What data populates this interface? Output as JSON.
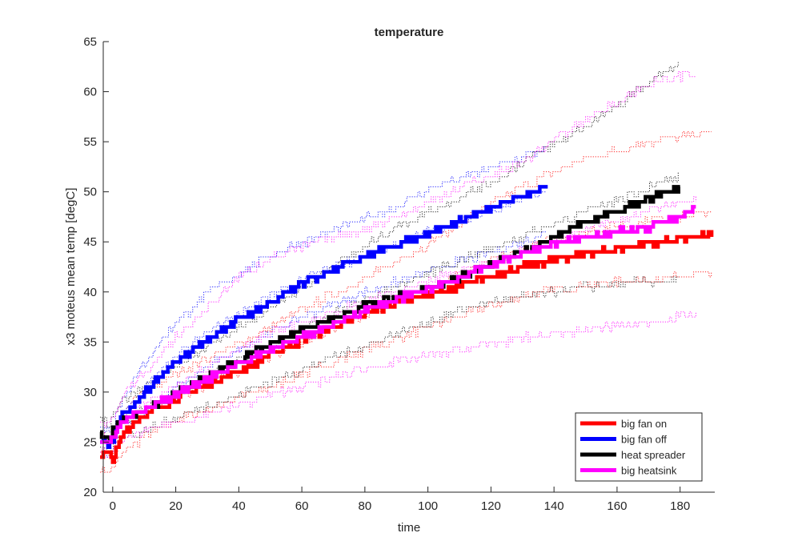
{
  "chart_data": {
    "type": "line",
    "title": "temperature",
    "xlabel": "time",
    "ylabel": "x3 moteus mean temp [degC]",
    "xlim": [
      -3,
      191
    ],
    "ylim": [
      20,
      65
    ],
    "xticks": [
      0,
      20,
      40,
      60,
      80,
      100,
      120,
      140,
      160,
      180
    ],
    "yticks": [
      20,
      25,
      30,
      35,
      40,
      45,
      50,
      55,
      60,
      65
    ],
    "grid": false,
    "legend_position": "bottom-right",
    "series": [
      {
        "name": "big fan on",
        "color": "#ff0000",
        "x": [
          -4,
          -1,
          0,
          1,
          3,
          5,
          10,
          15,
          20,
          30,
          40,
          50,
          60,
          70,
          80,
          90,
          100,
          110,
          120,
          130,
          140,
          150,
          160,
          170,
          180,
          190
        ],
        "y": [
          23.8,
          23.6,
          23.3,
          24.2,
          25.5,
          26.5,
          27.8,
          28.5,
          29.4,
          30.8,
          32.0,
          33.8,
          35.2,
          36.5,
          37.8,
          39.0,
          39.7,
          40.6,
          41.6,
          42.5,
          43.2,
          43.8,
          44.3,
          44.8,
          45.2,
          45.8
        ],
        "min": [
          22.3,
          22.0,
          22.5,
          23.0,
          23.8,
          24.5,
          25.5,
          26.3,
          27.2,
          28.2,
          29.5,
          30.5,
          31.8,
          33.0,
          34.2,
          35.3,
          36.5,
          37.6,
          38.7,
          39.6,
          40.2,
          40.7,
          41.0,
          41.3,
          41.5,
          41.8
        ],
        "max": [
          25.5,
          25.2,
          25.0,
          26.0,
          27.5,
          28.5,
          30.2,
          31.0,
          31.8,
          33.5,
          34.8,
          36.5,
          38.3,
          39.8,
          41.3,
          43.0,
          44.8,
          46.8,
          48.8,
          50.5,
          52.0,
          53.3,
          54.2,
          55.0,
          55.5,
          56.0
        ]
      },
      {
        "name": "big fan off",
        "color": "#0000ff",
        "x": [
          -4,
          -1,
          0,
          1,
          3,
          5,
          8,
          10,
          15,
          20,
          30,
          40,
          50,
          60,
          70,
          80,
          90,
          100,
          110,
          120,
          130,
          138
        ],
        "y": [
          25.2,
          24.8,
          25.2,
          26.5,
          27.5,
          28.2,
          29.0,
          30.0,
          31.5,
          33.0,
          35.3,
          37.2,
          39.0,
          40.8,
          42.3,
          43.6,
          44.7,
          45.9,
          47.0,
          48.3,
          49.6,
          50.5
        ],
        "min": [
          24.0,
          23.6,
          24.0,
          25.0,
          25.8,
          26.5,
          27.2,
          27.8,
          29.0,
          30.5,
          32.5,
          34.3,
          36.0,
          37.5,
          38.8,
          40.0,
          41.0,
          42.0,
          43.0,
          44.0,
          45.0,
          46.0
        ],
        "max": [
          26.5,
          26.3,
          26.8,
          28.0,
          29.3,
          30.5,
          31.8,
          33.0,
          35.0,
          37.0,
          39.8,
          42.0,
          43.7,
          45.0,
          46.2,
          47.3,
          48.5,
          50.2,
          51.3,
          52.5,
          53.5,
          54.2
        ]
      },
      {
        "name": "heat spreader",
        "color": "#000000",
        "x": [
          -4,
          -1,
          0,
          1,
          3,
          5,
          10,
          15,
          20,
          30,
          40,
          50,
          60,
          70,
          80,
          90,
          100,
          110,
          120,
          130,
          140,
          150,
          160,
          170,
          180
        ],
        "y": [
          25.5,
          25.3,
          26.2,
          26.8,
          27.3,
          27.5,
          28.2,
          29.0,
          30.0,
          31.5,
          33.2,
          34.8,
          36.2,
          37.5,
          38.7,
          39.5,
          40.3,
          41.5,
          42.8,
          44.0,
          45.5,
          47.0,
          48.2,
          49.3,
          50.3
        ],
        "min": [
          24.3,
          24.0,
          24.8,
          25.2,
          25.6,
          25.8,
          26.2,
          26.8,
          27.4,
          28.7,
          29.8,
          31.0,
          32.3,
          33.5,
          34.6,
          35.8,
          37.0,
          38.2,
          39.0,
          39.5,
          40.0,
          40.5,
          40.8,
          41.0,
          41.2
        ],
        "max": [
          27.0,
          26.8,
          27.5,
          28.2,
          29.0,
          29.5,
          30.5,
          31.5,
          32.5,
          34.5,
          36.5,
          38.5,
          40.5,
          42.5,
          44.5,
          46.5,
          48.0,
          49.5,
          51.0,
          53.0,
          54.8,
          56.5,
          58.5,
          61.0,
          63.0
        ]
      },
      {
        "name": "big heatsink",
        "color": "#ff00ff",
        "x": [
          -4,
          -1,
          0,
          1,
          3,
          5,
          10,
          15,
          20,
          30,
          40,
          50,
          60,
          70,
          80,
          90,
          100,
          110,
          120,
          130,
          140,
          150,
          160,
          170,
          185
        ],
        "y": [
          25.3,
          25.0,
          25.6,
          26.2,
          27.0,
          27.6,
          28.3,
          28.9,
          29.8,
          31.3,
          32.8,
          34.2,
          35.5,
          36.8,
          38.2,
          39.3,
          40.3,
          41.4,
          42.7,
          43.9,
          44.8,
          45.5,
          46.0,
          46.4,
          48.3
        ],
        "min": [
          24.0,
          23.7,
          24.3,
          24.8,
          25.3,
          25.6,
          26.0,
          26.5,
          27.0,
          27.8,
          28.7,
          29.7,
          30.6,
          31.5,
          32.3,
          33.0,
          33.6,
          34.2,
          34.8,
          35.4,
          35.8,
          36.2,
          36.6,
          37.0,
          37.8
        ],
        "max": [
          27.0,
          26.8,
          27.5,
          28.3,
          29.5,
          30.5,
          32.0,
          33.5,
          35.5,
          38.5,
          41.5,
          43.5,
          44.5,
          45.3,
          46.3,
          47.5,
          49.0,
          50.5,
          51.5,
          53.0,
          55.3,
          57.3,
          59.0,
          60.8,
          62.0
        ]
      }
    ]
  }
}
